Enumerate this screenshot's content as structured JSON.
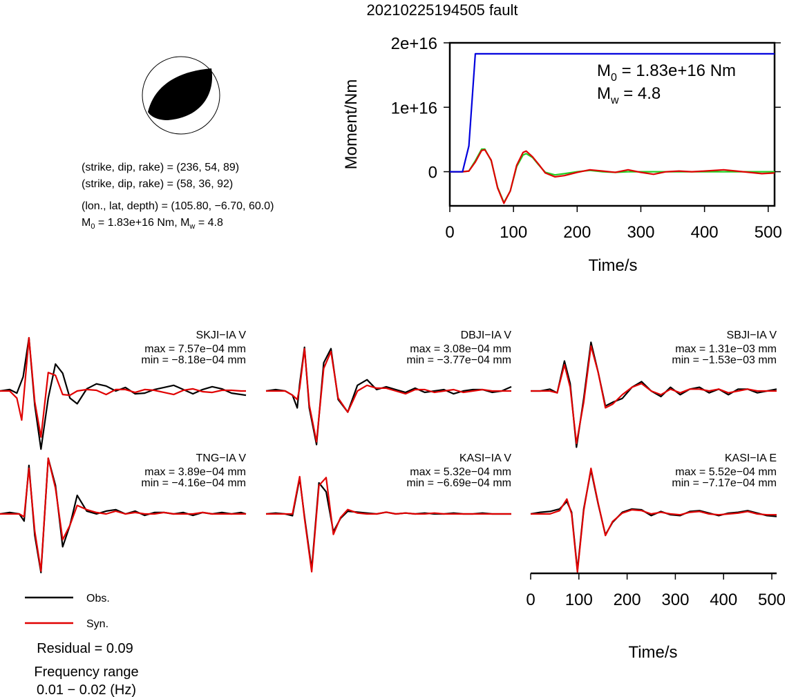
{
  "title": "20210225194505 fault",
  "focal": {
    "line1": "(strike, dip, rake) = (236, 54, 89)",
    "line2": "(strike, dip, rake) = (58, 36, 92)",
    "line3": "(lon., lat, depth) = (105.80, −6.70, 60.0)",
    "m0_prefix": "M",
    "m0_rest": " = 1.83e+16 Nm, M",
    "mw_rest": " = 4.8"
  },
  "legend": {
    "obs_label": "Obs.",
    "syn_label": "Syn."
  },
  "residual": "Residual = 0.09",
  "freq_title": "Frequency range",
  "freq_value": "0.01 − 0.02 (Hz)",
  "colors": {
    "obs": "#000000",
    "syn": "#e00000",
    "moment": "#0000dd",
    "stf_green": "#22cc22"
  },
  "chart_data": [
    {
      "type": "line",
      "id": "moment",
      "xlabel": "Time/s",
      "ylabel": "Moment/Nm",
      "xlim": [
        0,
        510
      ],
      "ylim": [
        -5300000000000000.0,
        2e+16
      ],
      "xticks": [
        0,
        100,
        200,
        300,
        400,
        500
      ],
      "yticks": [
        {
          "v": 0,
          "label": "0"
        },
        {
          "v": 1e+16,
          "label": "1e+16"
        },
        {
          "v": 2e+16,
          "label": "2e+16"
        }
      ],
      "annotation": {
        "m0_prefix": "M",
        "m0_rest": " = 1.83e+16 Nm",
        "mw_prefix": "M",
        "mw_rest": " = 4.8"
      },
      "series": [
        {
          "color": "#0000dd",
          "x": [
            0,
            20,
            30,
            40,
            510
          ],
          "y": [
            0,
            0,
            4000000000000000.0,
            1.83e+16,
            1.83e+16
          ]
        },
        {
          "color": "#e00000",
          "x": [
            0,
            20,
            30,
            40,
            50,
            55,
            65,
            75,
            85,
            95,
            105,
            115,
            120,
            130,
            140,
            150,
            165,
            180,
            200,
            220,
            240,
            260,
            280,
            300,
            320,
            340,
            360,
            380,
            400,
            430,
            450,
            470,
            490,
            510
          ],
          "y": [
            0,
            0,
            100000000000000.0,
            1500000000000000.0,
            3300000000000000.0,
            3400000000000000.0,
            1800000000000000.0,
            -2500000000000000.0,
            -4900000000000000.0,
            -3000000000000000.0,
            1000000000000000.0,
            3000000000000000.0,
            3200000000000000.0,
            2300000000000000.0,
            1100000000000000.0,
            -200000000000000.0,
            -800000000000000.0,
            -600000000000000.0,
            -100000000000000.0,
            300000000000000.0,
            100000000000000.0,
            -100000000000000.0,
            300000000000000.0,
            -100000000000000.0,
            -400000000000000.0,
            0,
            100000000000000.0,
            0,
            100000000000000.0,
            300000000000000.0,
            100000000000000.0,
            -100000000000000.0,
            -300000000000000.0,
            -200000000000000.0
          ]
        },
        {
          "color": "#22cc22",
          "x": [
            0,
            20,
            30,
            40,
            50,
            55,
            65,
            75,
            85,
            95,
            105,
            115,
            120,
            130,
            140,
            150,
            165,
            180,
            200,
            220,
            240,
            260,
            280,
            300,
            320,
            340,
            360,
            380,
            400,
            430,
            450,
            470,
            490,
            510
          ],
          "y": [
            0,
            0,
            100000000000000.0,
            1700000000000000.0,
            3500000000000000.0,
            3500000000000000.0,
            1700000000000000.0,
            -2400000000000000.0,
            -4800000000000000.0,
            -3000000000000000.0,
            800000000000000.0,
            2600000000000000.0,
            2800000000000000.0,
            2200000000000000.0,
            1000000000000000.0,
            -100000000000000.0,
            -500000000000000.0,
            -300000000000000.0,
            0,
            200000000000000.0,
            0,
            -100000000000000.0,
            0,
            0,
            0,
            0,
            0,
            0,
            0,
            0,
            0,
            0,
            0,
            0
          ]
        }
      ]
    },
    {
      "type": "line",
      "id": "SKJI",
      "station": "SKJI−IA V",
      "max": "max = 7.57e−04 mm",
      "min": "min = −8.18e−04 mm",
      "xlim": [
        0,
        510
      ],
      "ylim": [
        -8.18,
        8.18
      ],
      "series": [
        {
          "name": "Obs.",
          "x": [
            0,
            20,
            35,
            48,
            60,
            72,
            85,
            100,
            115,
            130,
            145,
            160,
            180,
            200,
            220,
            240,
            260,
            280,
            300,
            320,
            340,
            360,
            380,
            400,
            420,
            440,
            460,
            480,
            500,
            510
          ],
          "y": [
            0,
            0.2,
            -0.3,
            2,
            7.5,
            -2,
            -8.2,
            -1,
            3.8,
            2.5,
            -1,
            -1.8,
            0.3,
            1,
            0.7,
            0,
            0.5,
            -0.4,
            -0.3,
            0.2,
            0.5,
            0.8,
            0.2,
            -0.4,
            0.2,
            0.6,
            0.3,
            -0.3,
            -0.5,
            -0.6
          ]
        },
        {
          "name": "Syn.",
          "x": [
            0,
            20,
            35,
            45,
            60,
            72,
            85,
            100,
            115,
            130,
            145,
            160,
            180,
            200,
            220,
            240,
            260,
            280,
            300,
            320,
            340,
            360,
            380,
            400,
            420,
            440,
            460,
            480,
            500,
            510
          ],
          "y": [
            0,
            0,
            -1,
            -4.1,
            7.5,
            -1.5,
            -6.5,
            2.6,
            2.2,
            -0.5,
            -0.6,
            0,
            0.2,
            0.1,
            -0.5,
            0.2,
            0.2,
            -0.2,
            0.2,
            0.1,
            -0.2,
            -0.5,
            0.1,
            0.3,
            -0.1,
            -0.2,
            0.1,
            0.1,
            0,
            0
          ]
        }
      ]
    },
    {
      "type": "line",
      "id": "DBJI",
      "station": "DBJI−IA V",
      "max": "max = 3.08e−04 mm",
      "min": "min = −3.77e−04 mm",
      "xlim": [
        0,
        510
      ],
      "ylim": [
        -3.77,
        3.77
      ],
      "series": [
        {
          "name": "Obs.",
          "x": [
            0,
            20,
            40,
            55,
            65,
            70,
            80,
            90,
            105,
            120,
            135,
            150,
            170,
            190,
            210,
            230,
            250,
            270,
            290,
            310,
            330,
            350,
            370,
            390,
            410,
            430,
            450,
            470,
            490,
            510
          ],
          "y": [
            0,
            0.1,
            0,
            -0.3,
            -1.2,
            0.5,
            3.1,
            -1.2,
            -3.8,
            2,
            3,
            -0.6,
            -1.5,
            0.4,
            0.8,
            0.1,
            0.3,
            0.1,
            -0.1,
            0.2,
            -0.1,
            0,
            0.1,
            -0.2,
            0,
            0.1,
            0.1,
            -0.1,
            0,
            0.3
          ]
        },
        {
          "name": "Syn.",
          "x": [
            0,
            20,
            40,
            55,
            65,
            70,
            80,
            90,
            105,
            120,
            135,
            150,
            170,
            190,
            210,
            230,
            250,
            270,
            290,
            310,
            330,
            350,
            370,
            390,
            410,
            430,
            450,
            470,
            490,
            510
          ],
          "y": [
            0,
            0,
            0,
            -0.3,
            -0.6,
            0.2,
            3,
            -1,
            -3.6,
            1.6,
            2.8,
            -0.5,
            -1.5,
            0,
            0.4,
            0.2,
            0.2,
            0,
            -0.2,
            0.1,
            0.1,
            -0.1,
            0,
            0.1,
            -0.1,
            0,
            0.1,
            0,
            0,
            0
          ]
        }
      ]
    },
    {
      "type": "line",
      "id": "SBJI",
      "station": "SBJI−IA V",
      "max": "max = 1.31e−03 mm",
      "min": "min = −1.53e−03 mm",
      "xlim": [
        0,
        510
      ],
      "ylim": [
        -1.53,
        1.53
      ],
      "series": [
        {
          "name": "Obs.",
          "x": [
            0,
            20,
            40,
            55,
            70,
            82,
            95,
            110,
            125,
            140,
            155,
            170,
            190,
            210,
            230,
            250,
            270,
            290,
            310,
            330,
            350,
            370,
            390,
            410,
            430,
            450,
            470,
            490,
            510
          ],
          "y": [
            0,
            0,
            0.05,
            -0.05,
            0.8,
            0.2,
            -1.5,
            -0.2,
            1.3,
            0.5,
            -0.4,
            -0.3,
            -0.2,
            0.1,
            0.25,
            0,
            -0.15,
            0.1,
            -0.1,
            0.05,
            0.1,
            -0.05,
            0.05,
            -0.1,
            0.05,
            0.05,
            -0.05,
            0,
            0.05
          ]
        },
        {
          "name": "Syn.",
          "x": [
            0,
            20,
            40,
            55,
            70,
            82,
            95,
            110,
            125,
            140,
            155,
            170,
            190,
            210,
            230,
            250,
            270,
            290,
            310,
            330,
            350,
            370,
            390,
            410,
            430,
            450,
            470,
            490,
            510
          ],
          "y": [
            0,
            0,
            0,
            -0.05,
            0.7,
            0.1,
            -1.4,
            -0.3,
            1.2,
            0.5,
            -0.45,
            -0.35,
            -0.1,
            0.1,
            0.2,
            0,
            -0.1,
            0.05,
            -0.05,
            0.05,
            0.05,
            0,
            0.05,
            -0.05,
            0,
            0.05,
            0,
            0,
            0
          ]
        }
      ]
    },
    {
      "type": "line",
      "id": "TNG",
      "station": "TNG−IA V",
      "max": "max = 3.89e−04 mm",
      "min": "min = −4.16e−04 mm",
      "xlim": [
        0,
        510
      ],
      "ylim": [
        -4.16,
        4.16
      ],
      "series": [
        {
          "name": "Obs.",
          "x": [
            0,
            20,
            40,
            50,
            60,
            72,
            85,
            100,
            115,
            130,
            145,
            160,
            180,
            200,
            220,
            240,
            260,
            280,
            300,
            320,
            340,
            360,
            380,
            400,
            420,
            440,
            460,
            480,
            500,
            510
          ],
          "y": [
            0,
            0.1,
            0,
            -0.5,
            3.4,
            -1.5,
            -4.1,
            3.9,
            2,
            -2.3,
            -0.8,
            1.3,
            0.2,
            0,
            0.2,
            0.3,
            0,
            0.2,
            -0.1,
            0.1,
            0.1,
            0,
            0.1,
            -0.1,
            0.1,
            0,
            0.1,
            0,
            0.1,
            0
          ]
        },
        {
          "name": "Syn.",
          "x": [
            0,
            20,
            40,
            50,
            60,
            72,
            85,
            100,
            115,
            130,
            145,
            160,
            180,
            200,
            220,
            240,
            260,
            280,
            300,
            320,
            340,
            360,
            380,
            400,
            420,
            440,
            460,
            480,
            500,
            510
          ],
          "y": [
            0,
            0,
            0,
            -0.2,
            3.2,
            -1.2,
            -4,
            3.9,
            1.8,
            -1.8,
            -0.8,
            0.6,
            0.3,
            0.1,
            0,
            0.2,
            0,
            0.1,
            0,
            0,
            0.1,
            0,
            0,
            0,
            0.1,
            0,
            0,
            0,
            0,
            0
          ]
        }
      ]
    },
    {
      "type": "line",
      "id": "KASI_V",
      "station": "KASI−IA V",
      "max": "max = 5.32e−04 mm",
      "min": "min = −6.69e−04 mm",
      "xlim": [
        0,
        510
      ],
      "ylim": [
        -6.69,
        6.69
      ],
      "series": [
        {
          "name": "Obs.",
          "x": [
            0,
            20,
            40,
            55,
            70,
            80,
            95,
            110,
            125,
            140,
            155,
            170,
            190,
            210,
            230,
            250,
            270,
            290,
            310,
            330,
            350,
            370,
            390,
            410,
            430,
            450,
            470,
            490,
            510
          ],
          "y": [
            0,
            0.1,
            0,
            -0.2,
            4,
            -0.3,
            -6.2,
            3.5,
            2.5,
            -2,
            -0.5,
            0.3,
            0.2,
            0.1,
            0,
            0.2,
            0,
            0.1,
            0,
            0.1,
            0,
            0,
            0.1,
            0,
            0,
            0.1,
            0,
            0,
            0
          ]
        },
        {
          "name": "Syn.",
          "x": [
            0,
            20,
            40,
            55,
            70,
            80,
            95,
            110,
            125,
            140,
            155,
            170,
            190,
            210,
            230,
            250,
            270,
            290,
            310,
            330,
            350,
            370,
            390,
            410,
            430,
            450,
            470,
            490,
            510
          ],
          "y": [
            0,
            0,
            0,
            0,
            4.2,
            -0.5,
            -6.5,
            3.2,
            4.1,
            -2.3,
            -0.4,
            0.5,
            0.1,
            0,
            0,
            0.2,
            0,
            0.1,
            0,
            0,
            0.1,
            0,
            0,
            0,
            0,
            0,
            0,
            0,
            0
          ]
        }
      ]
    },
    {
      "type": "line",
      "id": "KASI_E",
      "station": "KASI−IA E",
      "max": "max = 5.52e−04 mm",
      "min": "min = −7.17e−04 mm",
      "xlim": [
        0,
        510
      ],
      "ylim": [
        -7.17,
        7.17
      ],
      "xlabel": "Time/s",
      "xticks": [
        0,
        100,
        200,
        300,
        400,
        500
      ],
      "series": [
        {
          "name": "Obs.",
          "x": [
            0,
            20,
            40,
            60,
            75,
            85,
            97,
            110,
            125,
            140,
            155,
            170,
            190,
            210,
            230,
            250,
            270,
            290,
            310,
            330,
            350,
            370,
            390,
            410,
            430,
            450,
            470,
            490,
            510
          ],
          "y": [
            0,
            0.2,
            0.3,
            0.6,
            1.5,
            0.2,
            -6.8,
            0.6,
            5.3,
            1.2,
            -2.5,
            -1,
            0.2,
            0.6,
            0.5,
            -0.2,
            0.3,
            -0.1,
            -0.2,
            0.3,
            0.4,
            0.1,
            -0.2,
            0.1,
            0.2,
            0.4,
            0.1,
            -0.2,
            -0.3
          ]
        },
        {
          "name": "Syn.",
          "x": [
            0,
            20,
            40,
            60,
            75,
            85,
            97,
            110,
            125,
            140,
            155,
            170,
            190,
            210,
            230,
            250,
            270,
            290,
            310,
            330,
            350,
            370,
            390,
            410,
            430,
            450,
            470,
            490,
            510
          ],
          "y": [
            0,
            0,
            0,
            0.4,
            1.8,
            0,
            -7,
            0.4,
            5.5,
            1.3,
            -2.6,
            -0.9,
            0.1,
            0.5,
            0.4,
            0,
            0.2,
            0,
            -0.1,
            0.2,
            0.3,
            0,
            -0.1,
            0,
            0.1,
            0.3,
            0,
            -0.1,
            -0.1
          ]
        }
      ]
    }
  ]
}
